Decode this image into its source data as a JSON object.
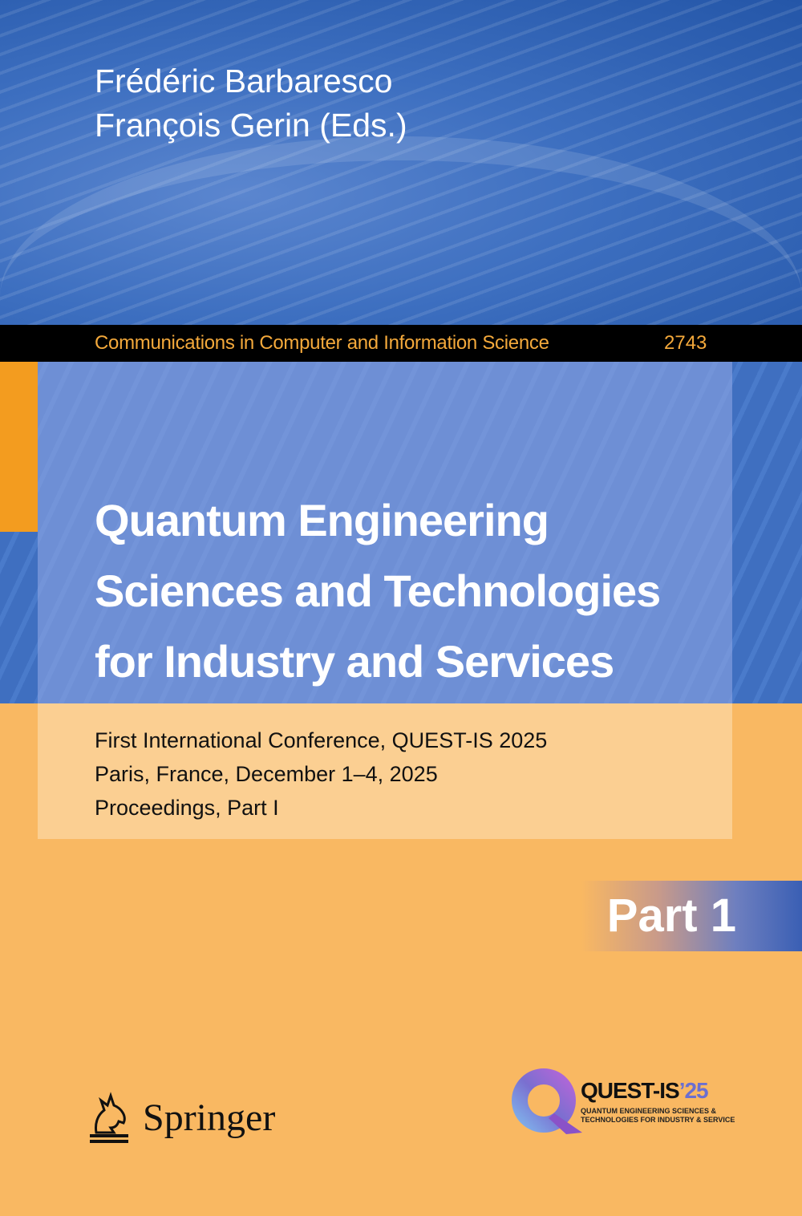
{
  "editors": [
    "Frédéric Barbaresco",
    "François Gerin (Eds.)"
  ],
  "series": {
    "name": "Communications in Computer and Information Science",
    "volume": "2743"
  },
  "title_lines": [
    "Quantum Engineering",
    "Sciences and Technologies",
    "for Industry and Services"
  ],
  "subtitle_lines": [
    "First International Conference, QUEST-IS 2025",
    "Paris, France, December 1–4, 2025",
    "Proceedings, Part I"
  ],
  "part_label": "Part 1",
  "publisher": "Springer",
  "conference_logo": {
    "name": "QUEST-IS",
    "year": "’25",
    "tagline_lines": [
      "QUANTUM ENGINEERING SCIENCES &",
      "TECHNOLOGIES FOR INDUSTRY & SERVICE"
    ]
  },
  "colors": {
    "blue": "#3e6ec0",
    "orange": "#f9b862",
    "accent_orange": "#f39c1f",
    "series_text": "#f4a93b"
  }
}
